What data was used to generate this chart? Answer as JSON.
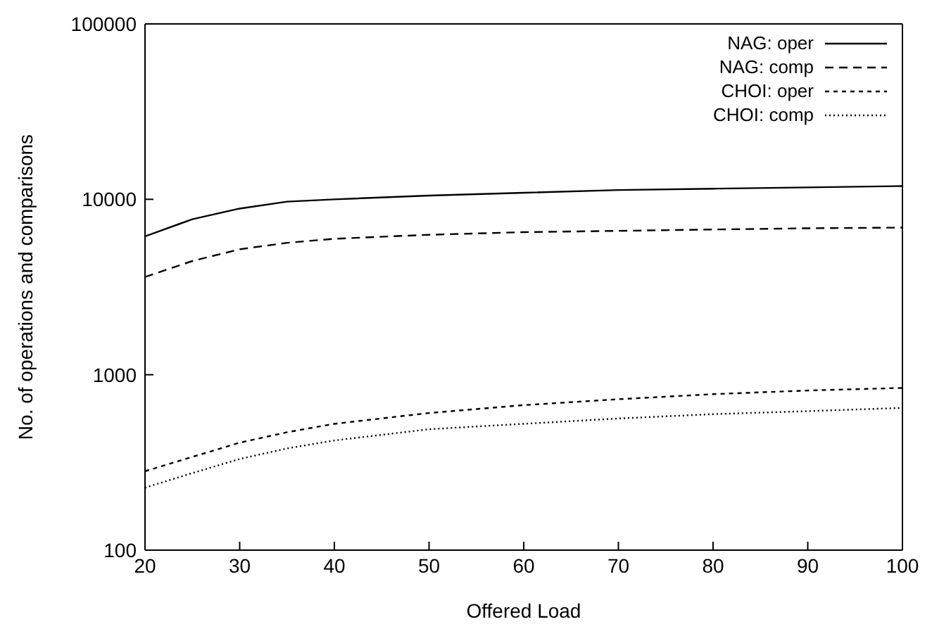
{
  "chart_data": {
    "type": "line",
    "xlabel": "Offered Load",
    "ylabel": "No. of operations and comparisons",
    "log": "y",
    "x": [
      20,
      25,
      30,
      35,
      40,
      50,
      60,
      70,
      80,
      90,
      100
    ],
    "xlim": [
      20,
      100
    ],
    "xticks": [
      20,
      30,
      40,
      50,
      60,
      70,
      80,
      90,
      100
    ],
    "ylim": [
      100,
      100000
    ],
    "yticks": [
      100,
      1000,
      10000,
      100000
    ],
    "legend": "top right",
    "grid": false,
    "marker": "none",
    "series": [
      {
        "name": "NAG: oper",
        "color": "#000000",
        "line_style": "solid",
        "values": [
          6150,
          7700,
          8860,
          9700,
          10000,
          10500,
          10900,
          11300,
          11500,
          11700,
          11900
        ]
      },
      {
        "name": "NAG: comp",
        "color": "#000000",
        "line_style": "dashed",
        "values": [
          3610,
          4450,
          5190,
          5650,
          5960,
          6280,
          6500,
          6610,
          6730,
          6840,
          6900
        ]
      },
      {
        "name": "CHOI: oper",
        "color": "#000000",
        "line_style": "dotted",
        "values": [
          282,
          340,
          410,
          470,
          525,
          605,
          671,
          725,
          775,
          813,
          841
        ]
      },
      {
        "name": "CHOI: comp",
        "color": "#000000",
        "line_style": "dotted",
        "values": [
          227,
          275,
          331,
          380,
          422,
          489,
          525,
          563,
          596,
          620,
          647
        ]
      }
    ]
  }
}
